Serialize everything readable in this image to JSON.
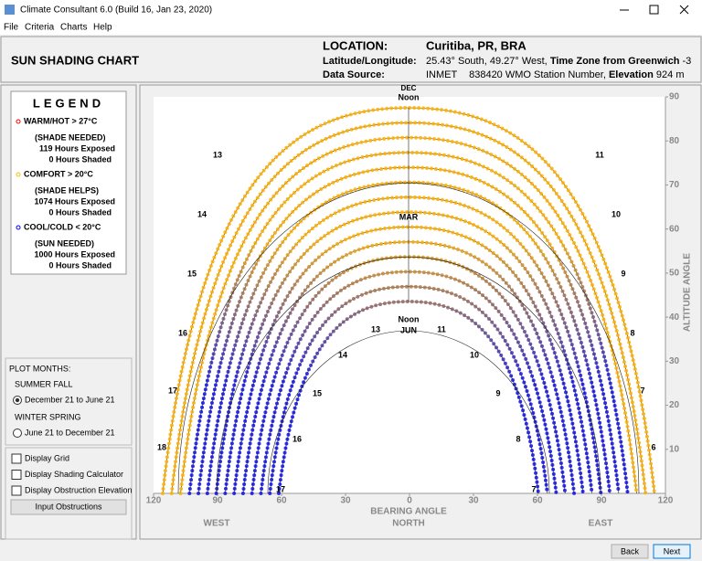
{
  "window": {
    "title": "Climate Consultant 6.0 (Build 16, Jan 23, 2020)"
  },
  "menu": [
    "File",
    "Criteria",
    "Charts",
    "Help"
  ],
  "header": {
    "chart_name": "SUN SHADING CHART",
    "location_label": "LOCATION:",
    "location": "Curitiba, PR, BRA",
    "latlong_label": "Latitude/Longitude:",
    "latlong": "25.43° South, 49.27° West,",
    "timezone_label": "Time Zone from Greenwich",
    "timezone": "-3",
    "source_label": "Data Source:",
    "source": "INMET",
    "station": "838420 WMO Station Number,",
    "elevation_label": "Elevation",
    "elevation": "924 m"
  },
  "legend": {
    "title": "LEGEND",
    "groups": [
      {
        "category": "WARM/HOT  > 27°C",
        "color": "#ff0000",
        "need": "(SHADE NEEDED)",
        "exposed": "119 Hours Exposed",
        "shaded": "0 Hours Shaded"
      },
      {
        "category": "COMFORT  > 20°C",
        "color": "#ffc000",
        "need": "(SHADE HELPS)",
        "exposed": "1074 Hours Exposed",
        "shaded": "0 Hours Shaded"
      },
      {
        "category": "COOL/COLD  < 20°C",
        "color": "#0000ff",
        "need": "(SUN NEEDED)",
        "exposed": "1000 Hours Exposed",
        "shaded": "0 Hours Shaded"
      }
    ]
  },
  "plot_months": {
    "title": "PLOT MONTHS:",
    "options": [
      {
        "group": "SUMMER FALL",
        "label": "December 21 to June 21",
        "selected": true
      },
      {
        "group": "WINTER SPRING",
        "label": "June 21 to December 21",
        "selected": false
      }
    ]
  },
  "options": [
    "Display Grid",
    "Display Shading Calculator",
    "Display Obstruction Elevation"
  ],
  "button": "Input Obstructions",
  "chart": {
    "x_label": "BEARING ANGLE",
    "x_sublabel": "NORTH",
    "west": "WEST",
    "east": "EAST",
    "y_label": "ALTITUDE ANGLE",
    "xlim": [
      -120,
      120
    ],
    "xticks": [
      {
        "value": -120,
        "label": "120"
      },
      {
        "value": -90,
        "label": "90"
      },
      {
        "value": -60,
        "label": "60"
      },
      {
        "value": -30,
        "label": "30"
      },
      0,
      30,
      60,
      90,
      120
    ],
    "ylim": [
      0,
      90
    ],
    "yticks": [
      10,
      20,
      30,
      40,
      50,
      60,
      70,
      80,
      90
    ],
    "dec": "DEC",
    "mar": "MAR",
    "jun": "JUN",
    "noon": "Noon",
    "hours_outer_left": [
      "13",
      "14",
      "15",
      "16",
      "17",
      "18"
    ],
    "hours_outer_right": [
      "11",
      "10",
      "9",
      "8",
      "7",
      "6"
    ],
    "hours_inner_left": [
      "13",
      "14",
      "15",
      "16",
      "17"
    ],
    "hours_inner_right": [
      "11",
      "10",
      "9",
      "8",
      "7"
    ]
  },
  "nav": [
    "Back",
    "Next"
  ]
}
